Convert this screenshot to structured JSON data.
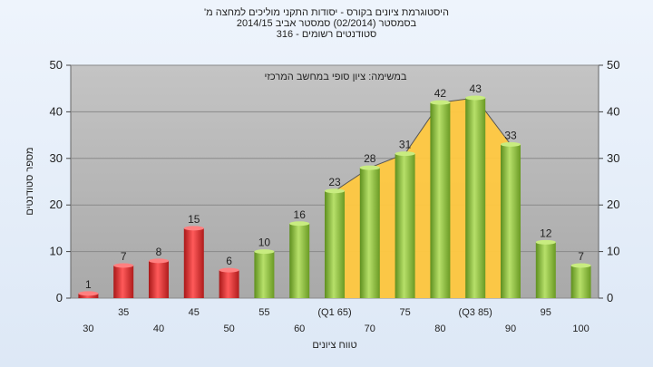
{
  "chart_data": {
    "type": "bar",
    "title_lines": [
      "היסטוגרמת ציונים בקורס - יסודות התקני מוליכים למחצה מ'",
      "בסמסטר  (02/2014)  סמסטר אביב 2014/15",
      "סטודנטים רשומים - 316"
    ],
    "annotation": "במשימה: ציון סופי במחשב המרכזי",
    "xlabel": "טווח ציונים",
    "ylabel": "מספר סטודנטים",
    "ylim": [
      0,
      50
    ],
    "yticks": [
      0,
      10,
      20,
      30,
      40,
      50
    ],
    "categories": [
      "30",
      "35",
      "40",
      "45",
      "50",
      "55",
      "60",
      "(Q1 65)",
      "70",
      "75",
      "80",
      "(Q3 85)",
      "90",
      "95",
      "100"
    ],
    "values": [
      1,
      7,
      8,
      15,
      6,
      10,
      16,
      23,
      28,
      31,
      42,
      43,
      33,
      12,
      7
    ],
    "bar_colors": [
      "#e03030",
      "#e03030",
      "#e03030",
      "#e03030",
      "#e03030",
      "#8cc43c",
      "#8cc43c",
      "#8cc43c",
      "#8cc43c",
      "#8cc43c",
      "#8cc43c",
      "#8cc43c",
      "#8cc43c",
      "#8cc43c",
      "#8cc43c"
    ],
    "area_overlay": {
      "from_index": 7,
      "to_index": 12,
      "color": "#ffc840"
    },
    "grid": true,
    "dual_y_axis": true,
    "plot_background": "#b8b8b8"
  }
}
